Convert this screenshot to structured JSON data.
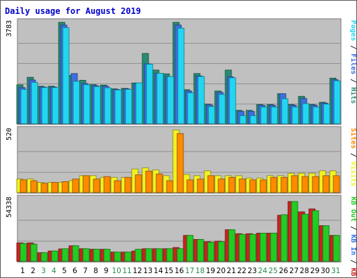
{
  "chart_data": {
    "type": "bar",
    "title": "Daily usage for August 2019",
    "title_color": "#0000cc",
    "background": "#c0c0c0",
    "days": [
      "1",
      "2",
      "3",
      "4",
      "5",
      "6",
      "7",
      "8",
      "9",
      "10",
      "11",
      "12",
      "13",
      "14",
      "15",
      "16",
      "17",
      "18",
      "19",
      "20",
      "21",
      "22",
      "23",
      "24",
      "25",
      "26",
      "27",
      "28",
      "29",
      "30",
      "31"
    ],
    "weekend_days": [
      "3",
      "4",
      "10",
      "11",
      "17",
      "18",
      "24",
      "25",
      "31"
    ],
    "weekday_label_color": "#000000",
    "weekend_label_color": "#238b46",
    "panels": [
      {
        "name": "hits-files-pages",
        "ymax_label": "3783",
        "ymax": 3783,
        "legend": [
          {
            "text": "Hits",
            "color": "#2a8a72"
          },
          {
            "text": "Files",
            "color": "#3c6ee0"
          },
          {
            "text": "Pages",
            "color": "#22d6f2"
          }
        ],
        "series": [
          {
            "name": "Hits",
            "color": "#2a8a72",
            "values": [
              1450,
              1730,
              1400,
              1400,
              3780,
              1800,
              1620,
              1460,
              1440,
              1300,
              1320,
              1520,
              2620,
              2000,
              1860,
              3780,
              1270,
              1870,
              730,
              1220,
              2000,
              500,
              500,
              720,
              720,
              1120,
              720,
              1020,
              720,
              800,
              1700
            ]
          },
          {
            "name": "Files",
            "color": "#3c6ee0",
            "values": [
              1350,
              1630,
              1370,
              1370,
              3680,
              1870,
              1500,
              1420,
              1400,
              1280,
              1300,
              1480,
              2230,
              1880,
              1760,
              3680,
              1220,
              1780,
              700,
              1170,
              1750,
              460,
              460,
              690,
              690,
              1120,
              690,
              940,
              690,
              770,
              1640
            ]
          },
          {
            "name": "Pages",
            "color": "#22d6f2",
            "values": [
              1280,
              1540,
              1350,
              1350,
              3580,
              1580,
              1450,
              1380,
              1340,
              1260,
              1280,
              1520,
              2220,
              1880,
              1760,
              3560,
              1150,
              1760,
              640,
              1090,
              1710,
              300,
              300,
              620,
              620,
              930,
              620,
              750,
              620,
              730,
              1600
            ]
          }
        ]
      },
      {
        "name": "visits-sites",
        "ymax_label": "520",
        "ymax": 520,
        "legend": [
          {
            "text": "Visits",
            "color": "#f2f222"
          },
          {
            "text": "Sites",
            "color": "#ff8a00"
          }
        ],
        "series": [
          {
            "name": "Visits",
            "color": "#f2f222",
            "values": [
              112,
              112,
              84,
              84,
              84,
              98,
              140,
              140,
              126,
              126,
              126,
              196,
              205,
              188,
              140,
              520,
              150,
              140,
              180,
              140,
              140,
              140,
              120,
              120,
              140,
              140,
              160,
              160,
              160,
              180,
              180
            ]
          },
          {
            "name": "Sites",
            "color": "#ff8a00",
            "values": [
              105,
              98,
              77,
              84,
              91,
              112,
              140,
              112,
              133,
              98,
              126,
              147,
              178,
              154,
              98,
              490,
              105,
              112,
              140,
              112,
              126,
              112,
              105,
              105,
              126,
              126,
              140,
              133,
              133,
              140,
              140
            ]
          }
        ]
      },
      {
        "name": "kb-in-out",
        "ymax_label": "54338",
        "ymax": 54338,
        "legend": [
          {
            "text": "KB F",
            "color": "#cc2222"
          },
          {
            "text": "KB In",
            "color": "#3070e0"
          },
          {
            "text": "KB Out",
            "color": "#22cc22"
          }
        ],
        "series": [
          {
            "name": "KB F",
            "color": "#cc2222",
            "values": [
              16000,
              16000,
              7500,
              9000,
              10800,
              13500,
              11000,
              10500,
              10500,
              8000,
              8000,
              9000,
              11000,
              11000,
              11000,
              12000,
              22500,
              19000,
              17000,
              17500,
              27500,
              24000,
              24000,
              24500,
              24500,
              40000,
              52000,
              43000,
              45500,
              31000,
              22500
            ]
          },
          {
            "name": "KB Out",
            "color": "#22cc22",
            "values": [
              15500,
              15000,
              7500,
              9000,
              11000,
              13500,
              11000,
              10500,
              10500,
              8000,
              8000,
              10500,
              11000,
              11000,
              11000,
              11000,
              22500,
              19000,
              16500,
              17000,
              27500,
              23500,
              23500,
              24500,
              24500,
              40500,
              52000,
              41000,
              44000,
              31000,
              22500
            ]
          }
        ]
      }
    ]
  }
}
